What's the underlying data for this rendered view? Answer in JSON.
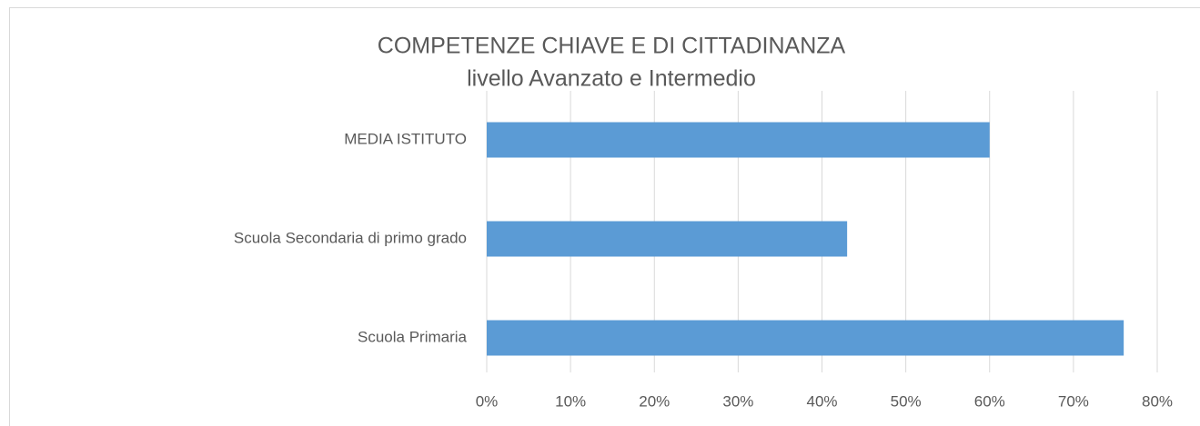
{
  "chart_data": {
    "type": "bar",
    "orientation": "horizontal",
    "title": "COMPETENZE CHIAVE E DI CITTADINANZA",
    "subtitle": "livello Avanzato  e Intermedio",
    "categories": [
      "MEDIA ISTITUTO",
      "Scuola Secondaria di primo grado",
      "Scuola Primaria"
    ],
    "values": [
      60,
      43,
      76
    ],
    "color": "#5b9bd5",
    "xlim": [
      0,
      80
    ],
    "xticks": [
      {
        "value": 0,
        "label": "0%"
      },
      {
        "value": 10,
        "label": "10%"
      },
      {
        "value": 20,
        "label": "20%"
      },
      {
        "value": 30,
        "label": "30%"
      },
      {
        "value": 40,
        "label": "40%"
      },
      {
        "value": 50,
        "label": "50%"
      },
      {
        "value": 60,
        "label": "60%"
      },
      {
        "value": 70,
        "label": "70%"
      },
      {
        "value": 80,
        "label": "80%"
      }
    ],
    "grid": true
  }
}
